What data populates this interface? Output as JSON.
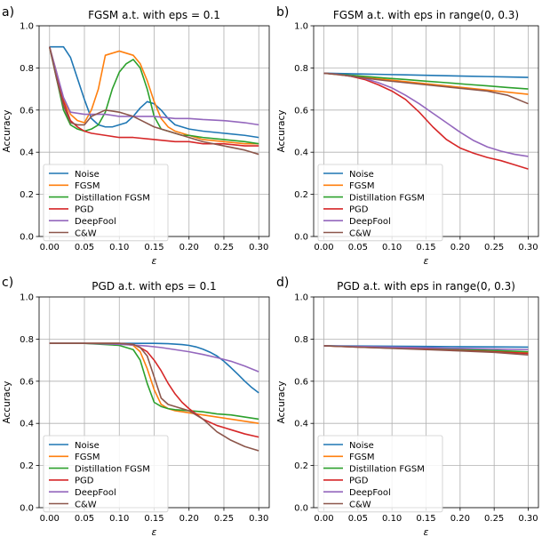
{
  "figure": {
    "colors": {
      "Noise": "#1f77b4",
      "FGSM": "#ff7f0e",
      "Distillation FGSM": "#2ca02c",
      "PGD": "#d62728",
      "DeepFool": "#9467bd",
      "C&W": "#8c564b"
    }
  },
  "chart_data": [
    {
      "type": "line",
      "panel_label": "a)",
      "title": "FGSM a.t. with eps = 0.1",
      "xlabel": "ε",
      "ylabel": "Accuracy",
      "xlim": [
        -0.015,
        0.315
      ],
      "ylim": [
        0,
        1
      ],
      "xticks": [
        "0.00",
        "0.05",
        "0.10",
        "0.15",
        "0.20",
        "0.25",
        "0.30"
      ],
      "yticks": [
        "0.0",
        "0.2",
        "0.4",
        "0.6",
        "0.8",
        "1.0"
      ],
      "legend_position": "lower-left",
      "series": [
        {
          "name": "Noise",
          "x": [
            0,
            0.01,
            0.02,
            0.03,
            0.04,
            0.05,
            0.06,
            0.07,
            0.08,
            0.09,
            0.1,
            0.11,
            0.12,
            0.13,
            0.14,
            0.15,
            0.16,
            0.17,
            0.18,
            0.19,
            0.2,
            0.22,
            0.25,
            0.28,
            0.3
          ],
          "y": [
            0.9,
            0.9,
            0.9,
            0.85,
            0.75,
            0.65,
            0.56,
            0.53,
            0.52,
            0.52,
            0.53,
            0.54,
            0.57,
            0.61,
            0.64,
            0.63,
            0.6,
            0.56,
            0.53,
            0.52,
            0.51,
            0.5,
            0.49,
            0.48,
            0.47
          ]
        },
        {
          "name": "FGSM",
          "x": [
            0,
            0.01,
            0.02,
            0.03,
            0.04,
            0.05,
            0.06,
            0.07,
            0.08,
            0.09,
            0.1,
            0.11,
            0.12,
            0.13,
            0.14,
            0.15,
            0.16,
            0.17,
            0.18,
            0.19,
            0.2,
            0.22,
            0.25,
            0.28,
            0.3
          ],
          "y": [
            0.9,
            0.78,
            0.65,
            0.58,
            0.55,
            0.54,
            0.6,
            0.7,
            0.86,
            0.87,
            0.88,
            0.87,
            0.86,
            0.82,
            0.74,
            0.64,
            0.56,
            0.52,
            0.5,
            0.49,
            0.48,
            0.46,
            0.45,
            0.44,
            0.44
          ]
        },
        {
          "name": "Distillation FGSM",
          "x": [
            0,
            0.01,
            0.02,
            0.03,
            0.04,
            0.05,
            0.06,
            0.07,
            0.08,
            0.09,
            0.1,
            0.11,
            0.12,
            0.13,
            0.14,
            0.15,
            0.16,
            0.17,
            0.18,
            0.19,
            0.2,
            0.22,
            0.25,
            0.28,
            0.3
          ],
          "y": [
            0.9,
            0.75,
            0.6,
            0.53,
            0.51,
            0.5,
            0.51,
            0.53,
            0.59,
            0.7,
            0.78,
            0.82,
            0.84,
            0.8,
            0.7,
            0.57,
            0.51,
            0.5,
            0.49,
            0.48,
            0.48,
            0.47,
            0.46,
            0.45,
            0.44
          ]
        },
        {
          "name": "PGD",
          "x": [
            0,
            0.01,
            0.02,
            0.03,
            0.04,
            0.05,
            0.06,
            0.08,
            0.1,
            0.12,
            0.15,
            0.18,
            0.2,
            0.22,
            0.25,
            0.28,
            0.3
          ],
          "y": [
            0.9,
            0.76,
            0.64,
            0.55,
            0.52,
            0.5,
            0.49,
            0.48,
            0.47,
            0.47,
            0.46,
            0.45,
            0.45,
            0.44,
            0.44,
            0.43,
            0.43
          ]
        },
        {
          "name": "DeepFool",
          "x": [
            0,
            0.01,
            0.02,
            0.03,
            0.05,
            0.08,
            0.1,
            0.12,
            0.15,
            0.18,
            0.2,
            0.22,
            0.25,
            0.28,
            0.3
          ],
          "y": [
            0.9,
            0.78,
            0.66,
            0.59,
            0.58,
            0.58,
            0.57,
            0.57,
            0.57,
            0.56,
            0.56,
            0.555,
            0.55,
            0.54,
            0.53
          ]
        },
        {
          "name": "C&W",
          "x": [
            0,
            0.01,
            0.02,
            0.03,
            0.04,
            0.05,
            0.06,
            0.08,
            0.1,
            0.12,
            0.15,
            0.18,
            0.2,
            0.22,
            0.25,
            0.28,
            0.3
          ],
          "y": [
            0.9,
            0.75,
            0.62,
            0.54,
            0.53,
            0.53,
            0.57,
            0.6,
            0.59,
            0.57,
            0.52,
            0.49,
            0.47,
            0.45,
            0.43,
            0.41,
            0.39
          ]
        }
      ]
    },
    {
      "type": "line",
      "panel_label": "b)",
      "title": "FGSM a.t. with eps in range(0, 0.3)",
      "xlabel": "ε",
      "ylabel": "Accuracy",
      "xlim": [
        -0.015,
        0.315
      ],
      "ylim": [
        0,
        1
      ],
      "xticks": [
        "0.00",
        "0.05",
        "0.10",
        "0.15",
        "0.20",
        "0.25",
        "0.30"
      ],
      "yticks": [
        "0.0",
        "0.2",
        "0.4",
        "0.6",
        "0.8",
        "1.0"
      ],
      "legend_position": "lower-left",
      "series": [
        {
          "name": "Noise",
          "x": [
            0,
            0.03,
            0.06,
            0.09,
            0.12,
            0.15,
            0.18,
            0.21,
            0.24,
            0.27,
            0.3
          ],
          "y": [
            0.775,
            0.773,
            0.771,
            0.769,
            0.767,
            0.765,
            0.763,
            0.761,
            0.759,
            0.757,
            0.755
          ]
        },
        {
          "name": "FGSM",
          "x": [
            0,
            0.03,
            0.06,
            0.09,
            0.12,
            0.15,
            0.18,
            0.21,
            0.24,
            0.27,
            0.3
          ],
          "y": [
            0.775,
            0.765,
            0.755,
            0.745,
            0.735,
            0.725,
            0.715,
            0.705,
            0.695,
            0.685,
            0.675
          ]
        },
        {
          "name": "Distillation FGSM",
          "x": [
            0,
            0.03,
            0.06,
            0.09,
            0.12,
            0.15,
            0.18,
            0.21,
            0.24,
            0.27,
            0.3
          ],
          "y": [
            0.775,
            0.768,
            0.76,
            0.752,
            0.745,
            0.737,
            0.73,
            0.722,
            0.715,
            0.707,
            0.7
          ]
        },
        {
          "name": "PGD",
          "x": [
            0,
            0.02,
            0.04,
            0.06,
            0.08,
            0.1,
            0.12,
            0.14,
            0.16,
            0.18,
            0.2,
            0.22,
            0.24,
            0.26,
            0.28,
            0.3
          ],
          "y": [
            0.775,
            0.77,
            0.76,
            0.745,
            0.72,
            0.69,
            0.65,
            0.59,
            0.52,
            0.46,
            0.42,
            0.395,
            0.375,
            0.36,
            0.34,
            0.32
          ]
        },
        {
          "name": "DeepFool",
          "x": [
            0,
            0.02,
            0.04,
            0.06,
            0.08,
            0.1,
            0.12,
            0.14,
            0.16,
            0.18,
            0.2,
            0.22,
            0.24,
            0.26,
            0.28,
            0.3
          ],
          "y": [
            0.775,
            0.77,
            0.762,
            0.75,
            0.73,
            0.705,
            0.67,
            0.63,
            0.585,
            0.54,
            0.495,
            0.455,
            0.425,
            0.405,
            0.39,
            0.38
          ]
        },
        {
          "name": "C&W",
          "x": [
            0,
            0.03,
            0.06,
            0.09,
            0.12,
            0.15,
            0.18,
            0.21,
            0.24,
            0.27,
            0.3
          ],
          "y": [
            0.775,
            0.765,
            0.752,
            0.74,
            0.73,
            0.72,
            0.71,
            0.7,
            0.69,
            0.67,
            0.63
          ]
        }
      ]
    },
    {
      "type": "line",
      "panel_label": "c)",
      "title": "PGD a.t. with eps = 0.1",
      "xlabel": "ε",
      "ylabel": "Accuracy",
      "xlim": [
        -0.015,
        0.315
      ],
      "ylim": [
        0,
        1
      ],
      "xticks": [
        "0.00",
        "0.05",
        "0.10",
        "0.15",
        "0.20",
        "0.25",
        "0.30"
      ],
      "yticks": [
        "0.0",
        "0.2",
        "0.4",
        "0.6",
        "0.8",
        "1.0"
      ],
      "legend_position": "lower-left",
      "series": [
        {
          "name": "Noise",
          "x": [
            0,
            0.05,
            0.1,
            0.15,
            0.17,
            0.19,
            0.2,
            0.21,
            0.22,
            0.23,
            0.24,
            0.25,
            0.26,
            0.27,
            0.28,
            0.29,
            0.3
          ],
          "y": [
            0.78,
            0.78,
            0.78,
            0.78,
            0.778,
            0.774,
            0.77,
            0.763,
            0.752,
            0.738,
            0.72,
            0.695,
            0.665,
            0.633,
            0.6,
            0.57,
            0.545
          ]
        },
        {
          "name": "FGSM",
          "x": [
            0,
            0.05,
            0.1,
            0.12,
            0.13,
            0.14,
            0.15,
            0.16,
            0.17,
            0.18,
            0.2,
            0.22,
            0.24,
            0.26,
            0.28,
            0.3
          ],
          "y": [
            0.78,
            0.78,
            0.78,
            0.77,
            0.74,
            0.66,
            0.56,
            0.49,
            0.47,
            0.46,
            0.45,
            0.44,
            0.43,
            0.42,
            0.41,
            0.4
          ]
        },
        {
          "name": "Distillation FGSM",
          "x": [
            0,
            0.05,
            0.1,
            0.12,
            0.13,
            0.14,
            0.15,
            0.16,
            0.17,
            0.18,
            0.2,
            0.22,
            0.24,
            0.26,
            0.28,
            0.3
          ],
          "y": [
            0.78,
            0.78,
            0.77,
            0.75,
            0.7,
            0.59,
            0.5,
            0.48,
            0.47,
            0.465,
            0.46,
            0.455,
            0.445,
            0.44,
            0.43,
            0.42
          ]
        },
        {
          "name": "PGD",
          "x": [
            0,
            0.05,
            0.1,
            0.12,
            0.13,
            0.14,
            0.15,
            0.16,
            0.17,
            0.18,
            0.19,
            0.2,
            0.21,
            0.22,
            0.24,
            0.26,
            0.28,
            0.3
          ],
          "y": [
            0.78,
            0.78,
            0.78,
            0.775,
            0.76,
            0.74,
            0.7,
            0.65,
            0.59,
            0.54,
            0.5,
            0.47,
            0.445,
            0.42,
            0.39,
            0.37,
            0.35,
            0.335
          ]
        },
        {
          "name": "DeepFool",
          "x": [
            0,
            0.05,
            0.1,
            0.12,
            0.14,
            0.16,
            0.18,
            0.2,
            0.22,
            0.24,
            0.26,
            0.28,
            0.3
          ],
          "y": [
            0.78,
            0.78,
            0.775,
            0.772,
            0.767,
            0.76,
            0.75,
            0.74,
            0.727,
            0.712,
            0.695,
            0.672,
            0.645
          ]
        },
        {
          "name": "C&W",
          "x": [
            0,
            0.05,
            0.1,
            0.12,
            0.13,
            0.14,
            0.15,
            0.16,
            0.17,
            0.18,
            0.2,
            0.22,
            0.24,
            0.26,
            0.28,
            0.3
          ],
          "y": [
            0.78,
            0.78,
            0.78,
            0.775,
            0.76,
            0.72,
            0.62,
            0.52,
            0.49,
            0.48,
            0.46,
            0.42,
            0.36,
            0.32,
            0.29,
            0.27
          ]
        }
      ]
    },
    {
      "type": "line",
      "panel_label": "d)",
      "title": "PGD a.t. with eps in range(0, 0.3)",
      "xlabel": "ε",
      "ylabel": "Accuracy",
      "xlim": [
        -0.015,
        0.315
      ],
      "ylim": [
        0,
        1
      ],
      "xticks": [
        "0.00",
        "0.05",
        "0.10",
        "0.15",
        "0.20",
        "0.25",
        "0.30"
      ],
      "yticks": [
        "0.0",
        "0.2",
        "0.4",
        "0.6",
        "0.8",
        "1.0"
      ],
      "legend_position": "lower-left",
      "series": [
        {
          "name": "Noise",
          "x": [
            0,
            0.05,
            0.1,
            0.15,
            0.2,
            0.25,
            0.3
          ],
          "y": [
            0.768,
            0.767,
            0.766,
            0.765,
            0.764,
            0.763,
            0.762
          ]
        },
        {
          "name": "FGSM",
          "x": [
            0,
            0.05,
            0.1,
            0.15,
            0.2,
            0.25,
            0.3
          ],
          "y": [
            0.768,
            0.763,
            0.758,
            0.753,
            0.748,
            0.742,
            0.735
          ]
        },
        {
          "name": "Distillation FGSM",
          "x": [
            0,
            0.05,
            0.1,
            0.15,
            0.2,
            0.25,
            0.3
          ],
          "y": [
            0.768,
            0.764,
            0.76,
            0.756,
            0.752,
            0.746,
            0.74
          ]
        },
        {
          "name": "PGD",
          "x": [
            0,
            0.05,
            0.1,
            0.15,
            0.2,
            0.25,
            0.3
          ],
          "y": [
            0.768,
            0.762,
            0.757,
            0.752,
            0.746,
            0.74,
            0.732
          ]
        },
        {
          "name": "DeepFool",
          "x": [
            0,
            0.05,
            0.1,
            0.15,
            0.2,
            0.25,
            0.3
          ],
          "y": [
            0.768,
            0.765,
            0.762,
            0.759,
            0.756,
            0.753,
            0.75
          ]
        },
        {
          "name": "C&W",
          "x": [
            0,
            0.05,
            0.1,
            0.15,
            0.2,
            0.25,
            0.3
          ],
          "y": [
            0.768,
            0.762,
            0.756,
            0.75,
            0.744,
            0.737,
            0.725
          ]
        }
      ]
    }
  ]
}
